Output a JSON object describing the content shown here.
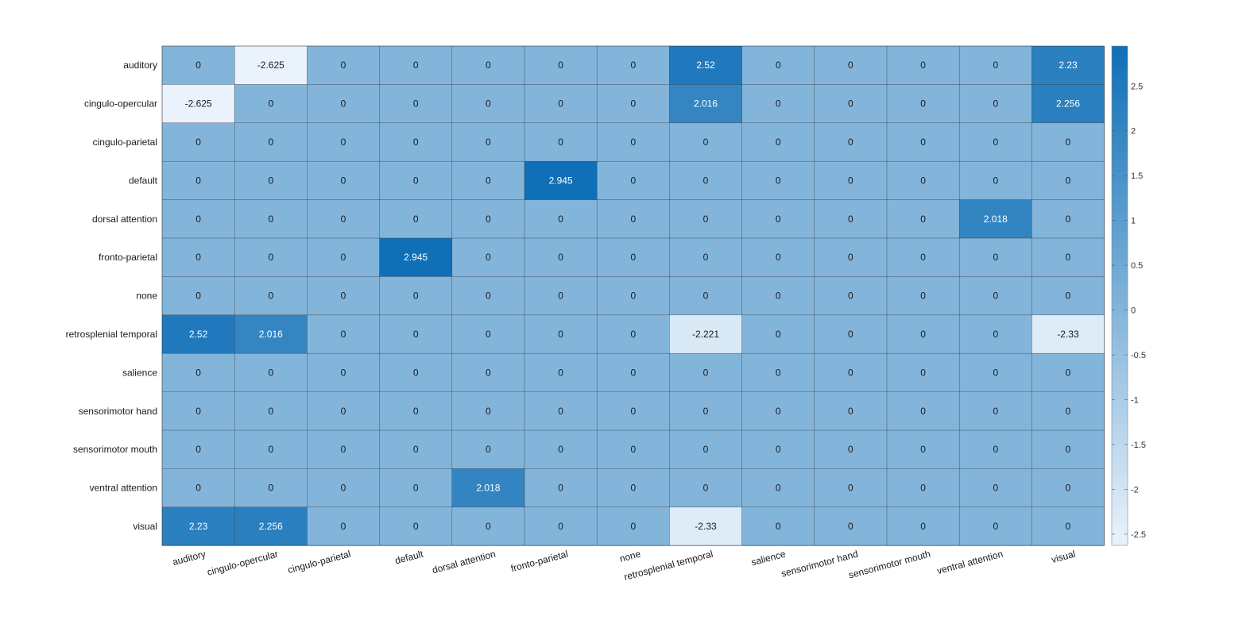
{
  "chart_data": {
    "type": "heatmap",
    "title": "",
    "xlabel": "",
    "ylabel": "",
    "categories_x": [
      "auditory",
      "cingulo-opercular",
      "cingulo-parietal",
      "default",
      "dorsal attention",
      "fronto-parietal",
      "none",
      "retrosplenial temporal",
      "salience",
      "sensorimotor hand",
      "sensorimotor mouth",
      "ventral attention",
      "visual"
    ],
    "categories_y": [
      "auditory",
      "cingulo-opercular",
      "cingulo-parietal",
      "default",
      "dorsal attention",
      "fronto-parietal",
      "none",
      "retrosplenial temporal",
      "salience",
      "sensorimotor hand",
      "sensorimotor mouth",
      "ventral attention",
      "visual"
    ],
    "values": [
      [
        0,
        -2.625,
        0,
        0,
        0,
        0,
        0,
        2.52,
        0,
        0,
        0,
        0,
        2.23
      ],
      [
        -2.625,
        0,
        0,
        0,
        0,
        0,
        0,
        2.016,
        0,
        0,
        0,
        0,
        2.256
      ],
      [
        0,
        0,
        0,
        0,
        0,
        0,
        0,
        0,
        0,
        0,
        0,
        0,
        0
      ],
      [
        0,
        0,
        0,
        0,
        0,
        2.945,
        0,
        0,
        0,
        0,
        0,
        0,
        0
      ],
      [
        0,
        0,
        0,
        0,
        0,
        0,
        0,
        0,
        0,
        0,
        0,
        2.018,
        0
      ],
      [
        0,
        0,
        0,
        2.945,
        0,
        0,
        0,
        0,
        0,
        0,
        0,
        0,
        0
      ],
      [
        0,
        0,
        0,
        0,
        0,
        0,
        0,
        0,
        0,
        0,
        0,
        0,
        0
      ],
      [
        2.52,
        2.016,
        0,
        0,
        0,
        0,
        0,
        -2.221,
        0,
        0,
        0,
        0,
        -2.33
      ],
      [
        0,
        0,
        0,
        0,
        0,
        0,
        0,
        0,
        0,
        0,
        0,
        0,
        0
      ],
      [
        0,
        0,
        0,
        0,
        0,
        0,
        0,
        0,
        0,
        0,
        0,
        0,
        0
      ],
      [
        0,
        0,
        0,
        0,
        0,
        0,
        0,
        0,
        0,
        0,
        0,
        0,
        0
      ],
      [
        0,
        0,
        0,
        0,
        2.018,
        0,
        0,
        0,
        0,
        0,
        0,
        0,
        0
      ],
      [
        2.23,
        2.256,
        0,
        0,
        0,
        0,
        0,
        -2.33,
        0,
        0,
        0,
        0,
        0
      ]
    ],
    "color_range": [
      -2.625,
      2.945
    ],
    "colormap": {
      "low": "#eaf3fb",
      "high": "#0f6fb7"
    },
    "colorbar": {
      "ticks": [
        -2.5,
        -2,
        -1.5,
        -1,
        -0.5,
        0,
        0.5,
        1,
        1.5,
        2,
        2.5
      ],
      "tick_labels": [
        "-2.5",
        "-2",
        "-1.5",
        "-1",
        "-0.5",
        "0",
        "0.5",
        "1",
        "1.5",
        "2",
        "2.5"
      ],
      "position": "right"
    },
    "grid": true
  }
}
